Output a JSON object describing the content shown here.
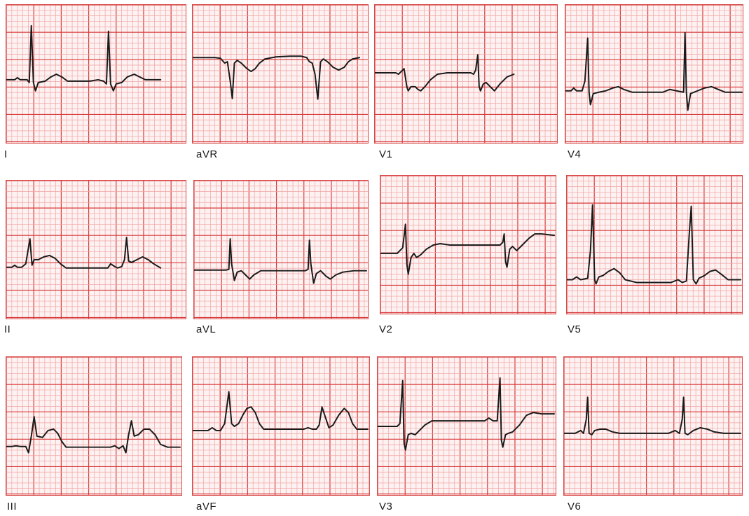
{
  "colors": {
    "grid_major": "#d93a3a",
    "grid_minor": "#f2a3a3",
    "paper": "#fdf2f2",
    "trace": "#1a1a1a"
  },
  "leads": [
    {
      "id": "I",
      "label": "I"
    },
    {
      "id": "aVR",
      "label": "aVR"
    },
    {
      "id": "V1",
      "label": "V1"
    },
    {
      "id": "V4",
      "label": "V4"
    },
    {
      "id": "II",
      "label": "II"
    },
    {
      "id": "aVL",
      "label": "aVL"
    },
    {
      "id": "V2",
      "label": "V2"
    },
    {
      "id": "V5",
      "label": "V5"
    },
    {
      "id": "III",
      "label": "III"
    },
    {
      "id": "aVF",
      "label": "aVF"
    },
    {
      "id": "V3",
      "label": "V3"
    },
    {
      "id": "V6",
      "label": "V6"
    }
  ]
}
